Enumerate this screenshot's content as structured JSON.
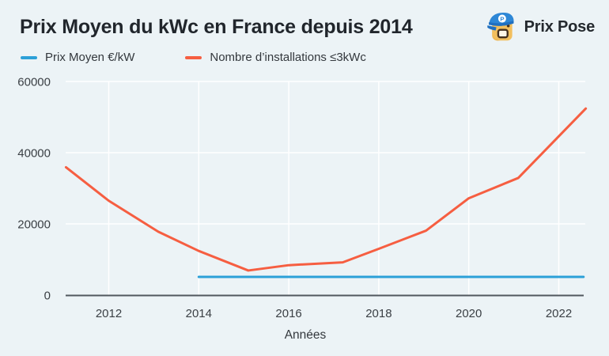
{
  "header": {
    "title": "Prix Moyen du kWc en France depuis 2014",
    "brand": "Prix Pose",
    "logo_icon": "prix-pose-mascot",
    "logo_letter": "P"
  },
  "legend": {
    "items": [
      {
        "label": "Prix Moyen €/kW",
        "color": "#2ca0d8"
      },
      {
        "label": "Nombre d’installations ≤3kWc",
        "color": "#f65e41"
      }
    ]
  },
  "chart_data": {
    "type": "line",
    "title": "Prix Moyen du kWc en France depuis 2014",
    "xlabel": "Années",
    "ylabel": "",
    "xlim": [
      2011,
      2022.65
    ],
    "ylim": [
      0,
      62000
    ],
    "x_ticks": [
      2012,
      2014,
      2016,
      2018,
      2020,
      2022
    ],
    "y_ticks": [
      0,
      20000,
      40000,
      60000
    ],
    "grid": true,
    "legend_position": "top-left",
    "background_color": "#ecf3f6",
    "gridline_color": "#ffffff",
    "axis_line_color": "#50575e",
    "tick_label_color": "#3a3f44",
    "series": [
      {
        "name": "Prix Moyen €/kW",
        "color": "#2ca0d8",
        "x": [
          2014,
          2022.55
        ],
        "y": [
          5100,
          5100
        ]
      },
      {
        "name": "Nombre d’installations ≤3kWc",
        "color": "#f65e41",
        "x": [
          2011.05,
          2012,
          2013.1,
          2014,
          2015.1,
          2016,
          2017.2,
          2018,
          2019.05,
          2020,
          2021.1,
          2022.6
        ],
        "y": [
          35900,
          26500,
          17800,
          12400,
          6900,
          8400,
          9200,
          13000,
          18100,
          27200,
          32900,
          52400
        ]
      }
    ]
  }
}
